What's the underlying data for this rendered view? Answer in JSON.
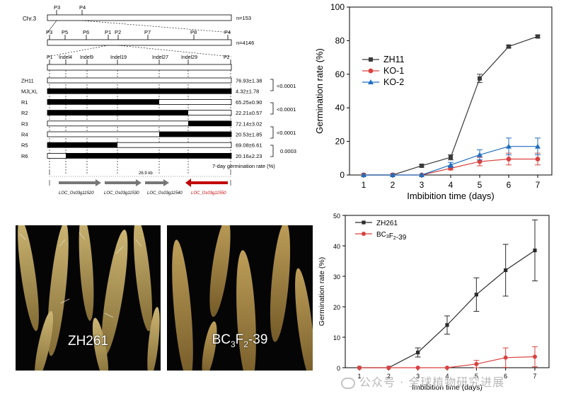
{
  "map": {
    "chr_label": "Chr.3",
    "row1": {
      "markers": [
        "P3",
        "P4"
      ],
      "n": "n=153"
    },
    "row2": {
      "markers": [
        "P3",
        "P5",
        "P6",
        "P1",
        "P2",
        "P7",
        "P8",
        "P4"
      ],
      "n": "n=4146"
    },
    "row3": {
      "markers": [
        "P1",
        "Indel4",
        "Indel9",
        "Indel19",
        "Indel27",
        "Indel29",
        "P2"
      ]
    },
    "lines": [
      {
        "name": "ZH11",
        "rate": "76.93±1.38"
      },
      {
        "name": "MJLXL",
        "rate": "4.32±1.78"
      },
      {
        "name": "R1",
        "rate": "65.25±0.90"
      },
      {
        "name": "R2",
        "rate": "22.21±0.57"
      },
      {
        "name": "R3",
        "rate": "72.14±3.02"
      },
      {
        "name": "R4",
        "rate": "20.53±1.85"
      },
      {
        "name": "R5",
        "rate": "69.08±6.61"
      },
      {
        "name": "R6",
        "rate": "20.16±2.23"
      }
    ],
    "pvalues": [
      "<0.0001",
      "<0.0001",
      "<0.0001",
      "0.0003"
    ],
    "rate_caption": "7-day germination rate (%)",
    "kb_label": "26.9 kb",
    "genes": [
      "LOC_Os03g11520",
      "LOC_Os03g11530",
      "LOC_Os03g11540",
      "LOC_Os03g11550"
    ],
    "colors": {
      "candidate_gene": "#c00000",
      "segment_fill": "#000000"
    }
  },
  "chart_data": [
    {
      "type": "line",
      "x": [
        1,
        2,
        3,
        4,
        5,
        6,
        7
      ],
      "xlabel": "Imbibition time (days)",
      "ylabel": "Germination rate (%)",
      "ylim": [
        0,
        100
      ],
      "yticks": [
        0,
        20,
        40,
        60,
        80,
        100
      ],
      "legend": "top-left",
      "series": [
        {
          "name": "ZH11",
          "color": "#3a3a3a",
          "marker": "square",
          "values": [
            0,
            0,
            5.5,
            10.5,
            57.5,
            76.5,
            82.5
          ],
          "err": [
            0,
            0,
            0.8,
            1.5,
            2.5,
            0.8,
            0.8
          ]
        },
        {
          "name": "KO-1",
          "color": "#d9413f",
          "marker": "circle",
          "values": [
            0,
            0,
            0,
            4,
            8,
            9.5,
            9.5
          ],
          "err": [
            0,
            0,
            0,
            1,
            2.5,
            3.5,
            3.5
          ]
        },
        {
          "name": "KO-2",
          "color": "#1f6fbf",
          "marker": "triangle",
          "values": [
            0,
            0,
            0,
            6,
            12,
            17,
            17
          ],
          "err": [
            0,
            0,
            0,
            1.5,
            3,
            5,
            5
          ]
        }
      ]
    },
    {
      "type": "line",
      "x": [
        1,
        2,
        3,
        4,
        5,
        6,
        7
      ],
      "xlabel": "Imbibition time (days)",
      "ylabel": "Germination rate (%)",
      "ylim": [
        0,
        50
      ],
      "yticks": [
        0,
        10,
        20,
        30,
        40,
        50
      ],
      "legend": "top-left",
      "series": [
        {
          "name": "ZH261",
          "color": "#2b2b2b",
          "marker": "square",
          "values": [
            0,
            0,
            5,
            14,
            24,
            32,
            38.5
          ],
          "err": [
            0,
            0,
            1.5,
            3,
            5.5,
            8.5,
            10
          ]
        },
        {
          "name": "BC3F2-39",
          "color": "#d9413f",
          "marker": "circle",
          "values": [
            0,
            0,
            0,
            0,
            1.2,
            3.3,
            3.6
          ],
          "err": [
            0,
            0,
            0,
            0,
            1.2,
            3.2,
            3.3
          ]
        }
      ]
    }
  ],
  "photos": {
    "left_label": "ZH261",
    "right_label_main": "BC",
    "right_label_sub1": "3",
    "right_label_mid": "F",
    "right_label_sub2": "2",
    "right_label_end": "-39"
  },
  "watermark": "公众号 · 全球植物研究进展"
}
